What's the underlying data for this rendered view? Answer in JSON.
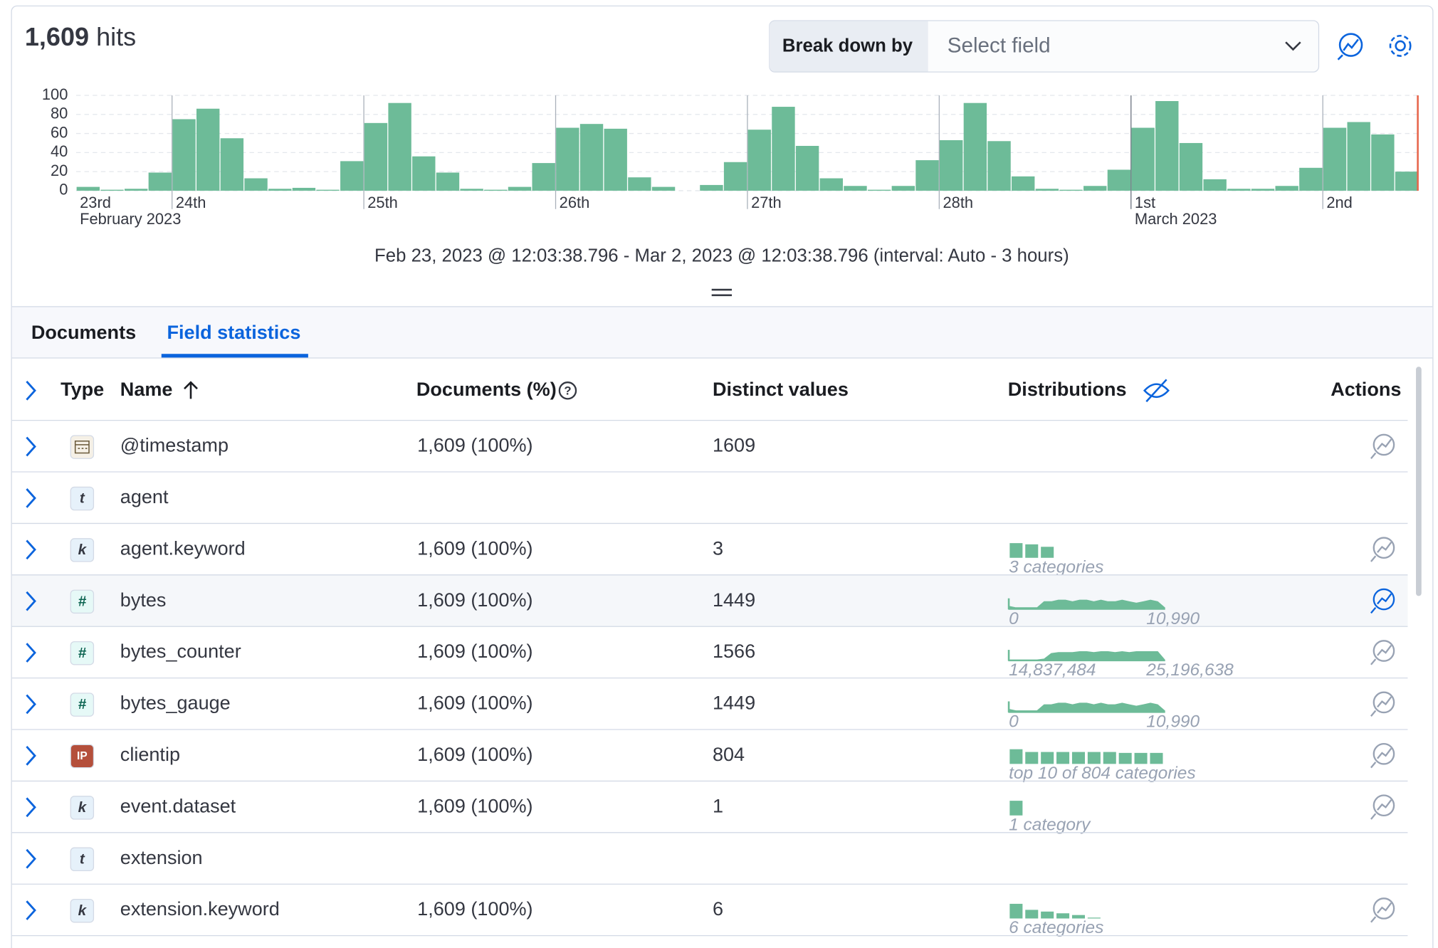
{
  "header": {
    "hits": "1,609",
    "hits_label": "hits",
    "breakdown_label": "Break down by",
    "breakdown_placeholder": "Select field"
  },
  "chart_data": {
    "type": "bar",
    "color": "#6dbb98",
    "caption": "Feb 23, 2023 @ 12:03:38.796 - Mar 2, 2023 @ 12:03:38.796 (interval: Auto - 3 hours)",
    "month_labels": [
      "February 2023",
      "March 2023"
    ],
    "categories": [
      "23rd",
      null,
      null,
      null,
      "24th",
      null,
      null,
      null,
      null,
      null,
      null,
      null,
      "25th",
      null,
      null,
      null,
      null,
      null,
      null,
      null,
      "26th",
      null,
      null,
      null,
      null,
      null,
      null,
      null,
      "27th",
      null,
      null,
      null,
      null,
      null,
      null,
      null,
      "28th",
      null,
      null,
      null,
      null,
      null,
      null,
      null,
      "1st",
      null,
      null,
      null,
      null,
      null,
      null,
      null,
      "2nd",
      null,
      null,
      null
    ],
    "values": [
      4,
      1,
      2,
      19,
      75,
      86,
      55,
      13,
      2,
      3,
      1,
      31,
      71,
      92,
      36,
      19,
      2,
      1,
      4,
      29,
      66,
      70,
      65,
      14,
      4,
      0,
      6,
      30,
      64,
      88,
      47,
      13,
      5,
      1,
      5,
      32,
      53,
      92,
      52,
      15,
      2,
      1,
      5,
      22,
      66,
      94,
      50,
      12,
      2,
      2,
      5,
      24,
      66,
      72,
      59,
      20
    ],
    "ylim": [
      0,
      100
    ],
    "yticks": [
      0,
      20,
      40,
      60,
      80,
      100
    ],
    "grid": true
  },
  "tabs": [
    "Documents",
    "Field statistics"
  ],
  "table": {
    "columns": [
      "Type",
      "Name",
      "Documents (%)",
      "Distinct values",
      "Distributions",
      "Actions"
    ],
    "rows": [
      {
        "name": "@timestamp",
        "documents": "1,609 (100%)",
        "distinct": 1609
      },
      {
        "icon": "t",
        "name": "agent"
      },
      {
        "icon": "k",
        "name": "agent.keyword",
        "documents": "1,609 (100%)",
        "distinct": 3,
        "distribution": {
          "kind": "bars",
          "values": [
            36,
            33,
            27
          ],
          "label": "3 categories"
        }
      },
      {
        "icon": "#",
        "name": "bytes",
        "documents": "1,609 (100%)",
        "distinct": 1449,
        "distribution": {
          "kind": "range",
          "values": [
            2,
            1,
            1,
            1,
            1,
            5,
            5,
            6,
            6,
            5,
            6,
            6,
            5,
            6,
            5,
            5,
            6,
            5,
            4,
            5,
            6,
            5,
            1
          ],
          "min": "0",
          "max": "10,990"
        }
      },
      {
        "icon": "#",
        "name": "bytes_counter",
        "documents": "1,609 (100%)",
        "distinct": 1566,
        "distribution": {
          "kind": "range",
          "values": [
            1,
            1,
            1,
            1,
            1,
            2,
            8,
            9,
            9,
            9,
            10,
            10,
            9,
            10,
            10,
            9,
            10,
            9,
            10,
            10,
            10,
            10,
            1
          ],
          "min": "14,837,484",
          "max": "25,196,638"
        }
      },
      {
        "icon": "#",
        "name": "bytes_gauge",
        "documents": "1,609 (100%)",
        "distinct": 1449,
        "distribution": {
          "kind": "range",
          "values": [
            2,
            1,
            1,
            1,
            1,
            5,
            5,
            6,
            6,
            5,
            6,
            6,
            5,
            6,
            5,
            5,
            6,
            5,
            4,
            5,
            6,
            5,
            1
          ],
          "min": "0",
          "max": "10,990"
        }
      },
      {
        "icon": "IP",
        "name": "clientip",
        "documents": "1,609 (100%)",
        "distinct": 804,
        "distribution": {
          "kind": "bars",
          "values": [
            16,
            13,
            13,
            13,
            13,
            13,
            13,
            12,
            12,
            12
          ],
          "label": "top 10 of 804 categories"
        }
      },
      {
        "icon": "k",
        "name": "event.dataset",
        "documents": "1,609 (100%)",
        "distinct": 1,
        "distribution": {
          "kind": "bars",
          "values": [
            16
          ],
          "label": "1 category"
        }
      },
      {
        "icon": "t",
        "name": "extension"
      },
      {
        "icon": "k",
        "name": "extension.keyword",
        "documents": "1,609 (100%)",
        "distinct": 6,
        "distribution": {
          "kind": "bars",
          "values": [
            17,
            10,
            8,
            6,
            4,
            1
          ],
          "label": "6 categories"
        }
      }
    ]
  }
}
